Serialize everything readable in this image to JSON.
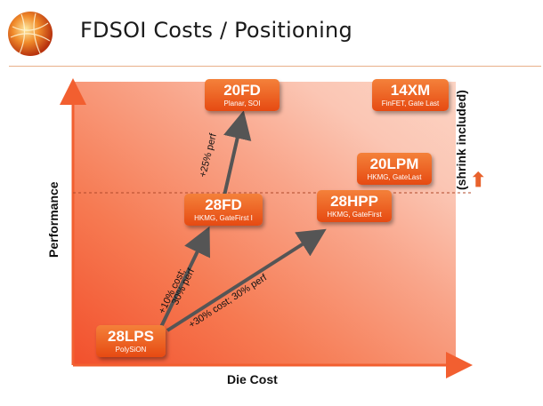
{
  "title": "FDSOI Costs / Positioning",
  "axes": {
    "x_label": "Die Cost",
    "y_label": "Performance"
  },
  "nodes": [
    {
      "id": "28lps",
      "name": "28LPS",
      "desc": "PolySiON"
    },
    {
      "id": "28fd",
      "name": "28FD",
      "desc": "HKMG, GateFirst I"
    },
    {
      "id": "20fd",
      "name": "20FD",
      "desc": "Planar, SOI"
    },
    {
      "id": "28hpp",
      "name": "28HPP",
      "desc": "HKMG, GateFirst"
    },
    {
      "id": "20lpm",
      "name": "20LPM",
      "desc": "HKMG, GateLast"
    },
    {
      "id": "14xm",
      "name": "14XM",
      "desc": "FinFET, Gate Last"
    }
  ],
  "arrow_labels": {
    "to_28fd_line1": "+10% cost;",
    "to_28fd_line2": "30% perf",
    "to_28hpp": "+30% cost; 30% perf",
    "to_20fd": "+25% perf"
  },
  "side_note": "(shrink included)",
  "side_arrow": "⬆",
  "colors": {
    "accent": "#e8622c",
    "box_top": "#f4813a",
    "box_bottom": "#e64a12",
    "arrow": "#555555"
  }
}
